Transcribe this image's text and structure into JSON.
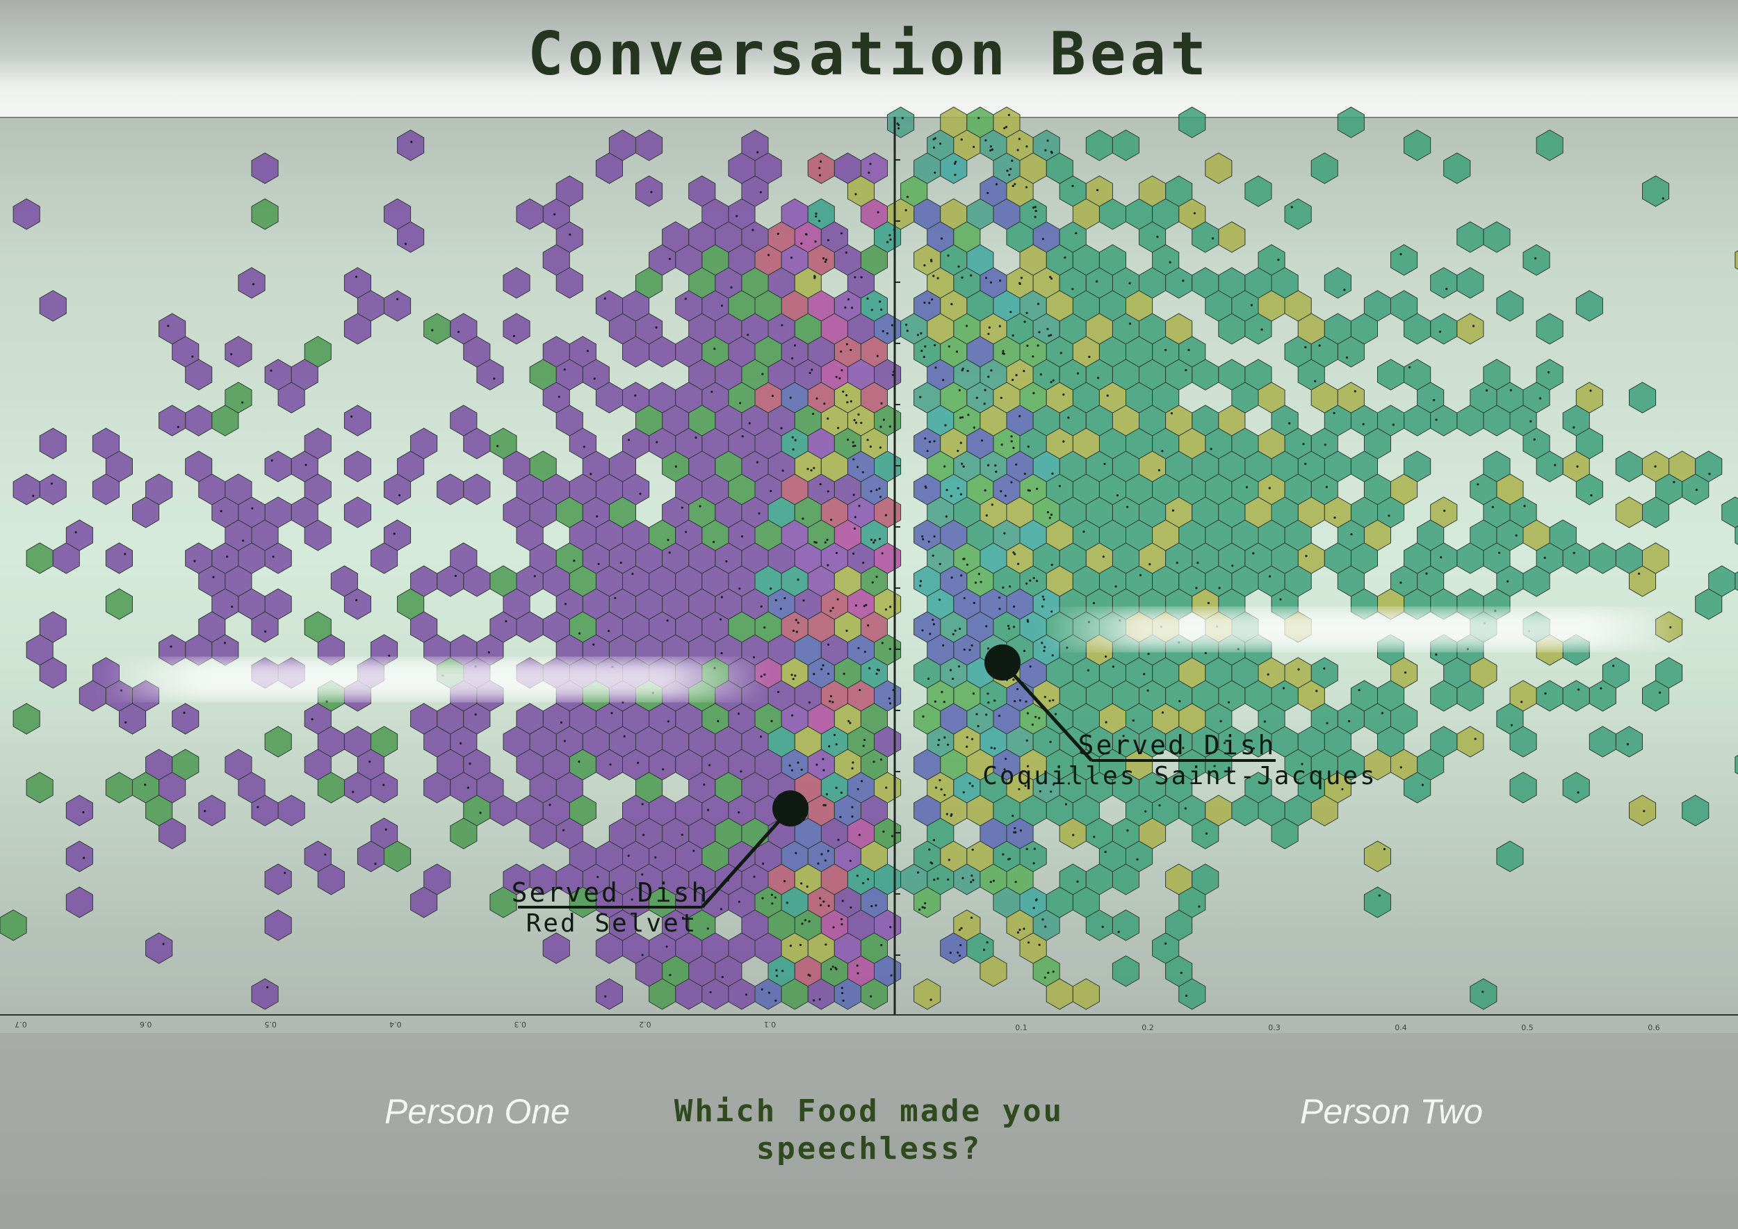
{
  "header": {
    "title": "Conversation Beat"
  },
  "footer": {
    "left_label": "Person One",
    "right_label": "Person Two",
    "question": "Which Food made you speechless?"
  },
  "chart_data": {
    "type": "hexbin",
    "x_axis": {
      "range": [
        -0.7,
        0.65
      ],
      "left_tick_labels": [
        "0.7",
        "0.6",
        "0.5",
        "0.4",
        "0.3",
        "0.2",
        "0.1"
      ],
      "left_tick_values": [
        -0.7,
        -0.6,
        -0.5,
        -0.4,
        -0.3,
        -0.2,
        -0.1
      ],
      "left_labels_flipped": true,
      "right_tick_labels": [
        "0.1",
        "0.2",
        "0.3",
        "0.4",
        "0.5",
        "0.6"
      ],
      "right_tick_values": [
        0.1,
        0.2,
        0.3,
        0.4,
        0.5,
        0.6
      ]
    },
    "y_axis": {
      "range": [
        0,
        35
      ],
      "tick_labels_shown": false
    },
    "sides": [
      {
        "name": "Person One",
        "color_scheme": [
          "#7a4fa3",
          "#8a55b0",
          "#4c9a52",
          "#3aa08a",
          "#b85a74",
          "#a8b24c",
          "#5a69b3",
          "#b04fa0"
        ]
      },
      {
        "name": "Person Two",
        "color_scheme": [
          "#3ea07a",
          "#4aa08a",
          "#40a7a0",
          "#5cae5a",
          "#a9b24c",
          "#5a69b3"
        ]
      }
    ],
    "annotations": [
      {
        "side": "Person One",
        "line1": "Served Dish",
        "line2": "Red Selvet"
      },
      {
        "side": "Person Two",
        "line1": "Served Dish",
        "line2": "Coquilles Saint-Jacques"
      }
    ]
  }
}
